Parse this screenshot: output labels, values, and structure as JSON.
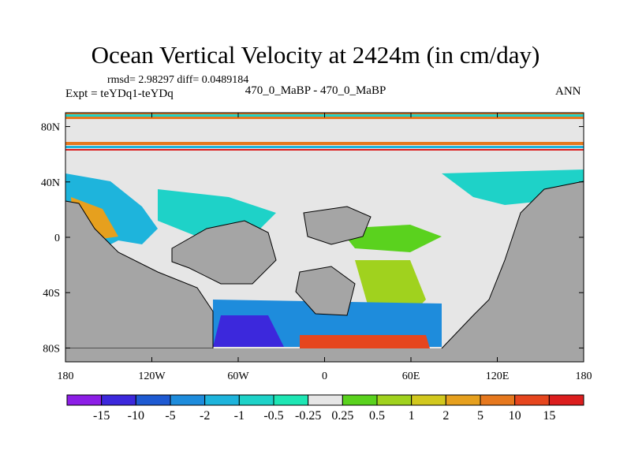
{
  "header": {
    "title": "Ocean Vertical Velocity at 2424m (in cm/day)",
    "stats": "rmsd= 2.98297 diff= 0.0489184",
    "expt": "Expt = teYDq1-teYDq",
    "center_label": "470_0_MaBP - 470_0_MaBP",
    "season": "ANN"
  },
  "chart_data": {
    "type": "heatmap",
    "title": "Ocean Vertical Velocity at 2424m (in cm/day)",
    "xlabel": "",
    "ylabel": "",
    "xlim": [
      -180,
      180
    ],
    "ylim": [
      -90,
      90
    ],
    "x_ticks": [
      {
        "value": -180,
        "label": "180"
      },
      {
        "value": -120,
        "label": "120W"
      },
      {
        "value": -60,
        "label": "60W"
      },
      {
        "value": 0,
        "label": "0"
      },
      {
        "value": 60,
        "label": "60E"
      },
      {
        "value": 120,
        "label": "120E"
      },
      {
        "value": 180,
        "label": "180"
      }
    ],
    "y_ticks": [
      {
        "value": 80,
        "label": "80N"
      },
      {
        "value": 40,
        "label": "40N"
      },
      {
        "value": 0,
        "label": "0"
      },
      {
        "value": -40,
        "label": "40S"
      },
      {
        "value": -80,
        "label": "80S"
      }
    ],
    "land_color": "#a5a5a5",
    "colorbar": {
      "labels": [
        "-15",
        "-10",
        "-5",
        "-2",
        "-1",
        "-0.5",
        "-0.25",
        "0.25",
        "0.5",
        "1",
        "2",
        "5",
        "10",
        "15"
      ],
      "colors": [
        "#8c1ee6",
        "#3c28dc",
        "#1e5ad2",
        "#1e8cdc",
        "#1eb4dc",
        "#1ed2c8",
        "#1ee6b4",
        "#e6e6e6",
        "#5ad21e",
        "#a0d21e",
        "#d2c81e",
        "#e6a01e",
        "#e6781e",
        "#e6461e",
        "#dc1e1e"
      ]
    }
  }
}
